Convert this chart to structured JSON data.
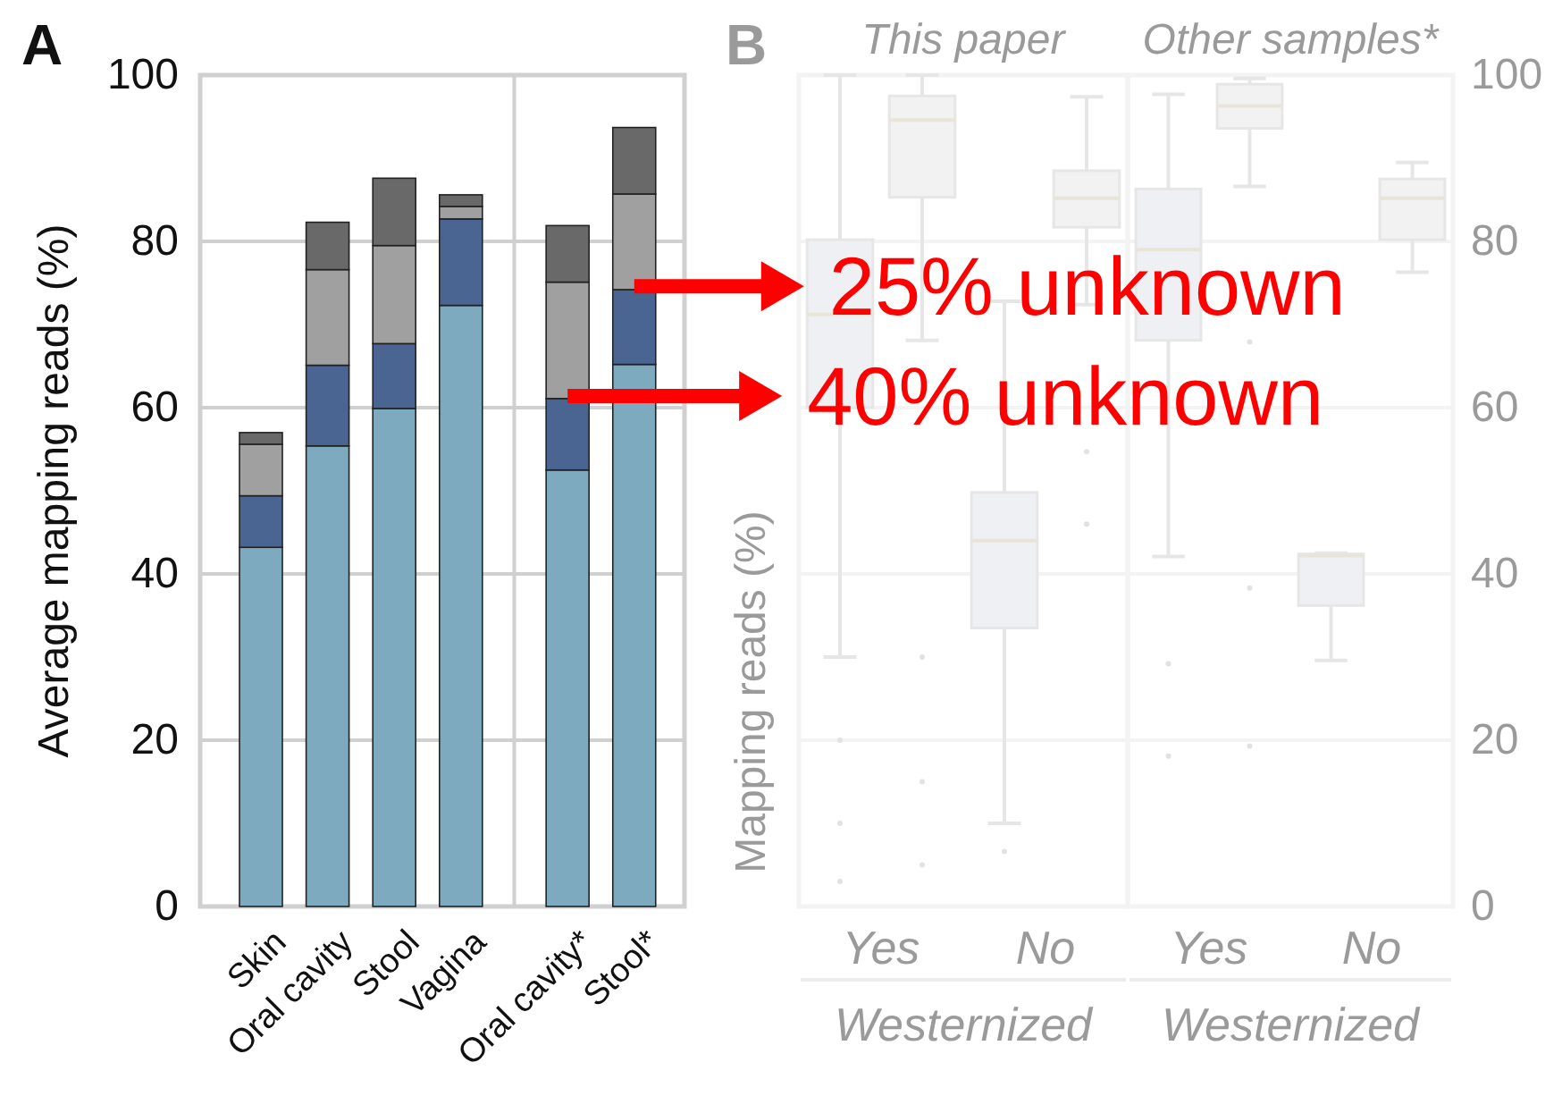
{
  "chart_data": [
    {
      "type": "bar",
      "stacked": true,
      "categories": [
        "Skin",
        "Oral cavity",
        "Stool",
        "Vagina",
        "Oral cavity*",
        "Stool*"
      ],
      "series": [
        {
          "color": "#7eaac0",
          "values": [
            43.2,
            55.4,
            59.9,
            72.3,
            52.5,
            65.2
          ]
        },
        {
          "color": "#4a6591",
          "values": [
            6.2,
            9.7,
            7.8,
            10.4,
            8.6,
            9.0
          ]
        },
        {
          "color": "#a0a0a0",
          "values": [
            6.2,
            11.5,
            11.8,
            1.5,
            14.0,
            11.5
          ]
        },
        {
          "color": "#696969",
          "values": [
            1.4,
            5.7,
            8.1,
            1.4,
            6.8,
            8.0
          ]
        }
      ],
      "ylabel": "Average mapping reads (%)",
      "ylim": [
        0,
        100
      ],
      "yticks": [
        0,
        20,
        40,
        60,
        80,
        100
      ],
      "grid": "y",
      "annotations": [
        "A",
        {
          "text": "25% unknown",
          "x": "Stool*",
          "y": 74.6
        },
        {
          "text": "40% unknown",
          "x": "Oral cavity*",
          "y": 61.4
        }
      ]
    },
    {
      "type": "box",
      "title": "This paper",
      "categories": [
        "Yes",
        "No"
      ],
      "xlabel": "Westernized",
      "ylabel": "Mapping reads (%)",
      "ylim": [
        0,
        100
      ],
      "yticks": [
        0,
        20,
        40,
        60,
        80,
        100
      ],
      "tick_labels": "x",
      "grid": "y",
      "annotations": [
        "B"
      ],
      "series": [
        {
          "color": "#eff0f4",
          "boxes": [
            {
              "low": 30,
              "q1": 60,
              "median": 71.2,
              "q3": 80.2,
              "high": 100,
              "outliers": [
                20,
                10,
                3
              ]
            },
            {
              "low": 10,
              "q1": 33.5,
              "median": 44,
              "q3": 49.8,
              "high": 72.8,
              "outliers": [
                6.6
              ]
            }
          ]
        },
        {
          "color": "#f2f2f2",
          "boxes": [
            {
              "low": 68.1,
              "q1": 85.3,
              "median": 94.6,
              "q3": 97.5,
              "high": 100,
              "outliers": [
                30,
                15,
                5
              ]
            },
            {
              "low": 72.4,
              "q1": 81.7,
              "median": 85.2,
              "q3": 88.5,
              "high": 97.4,
              "outliers": [
                54.7,
                46
              ]
            }
          ]
        }
      ]
    },
    {
      "type": "box",
      "title": "Other samples*",
      "categories": [
        "Yes",
        "No"
      ],
      "xlabel": "Westernized",
      "ylim": [
        0,
        100
      ],
      "yticks": [
        0,
        20,
        40,
        60,
        80,
        100
      ],
      "grid": "y",
      "series": [
        {
          "color": "#eff0f4",
          "boxes": [
            {
              "low": 42.1,
              "q1": 68.1,
              "median": 79,
              "q3": 86.3,
              "high": 97.7,
              "outliers": [
                29.2,
                18.1
              ]
            },
            {
              "low": 29.6,
              "q1": 36.2,
              "median": 42.2,
              "q3": 42.4,
              "high": 42.5
            }
          ]
        },
        {
          "color": "#f2f2f2",
          "boxes": [
            {
              "low": 86.6,
              "q1": 93.6,
              "median": 96.3,
              "q3": 98.9,
              "high": 99.6,
              "outliers": [
                67.9,
                38.3,
                19.3
              ]
            },
            {
              "low": 76.3,
              "q1": 80.2,
              "median": 85.2,
              "q3": 87.5,
              "high": 89.5
            }
          ]
        }
      ]
    }
  ]
}
